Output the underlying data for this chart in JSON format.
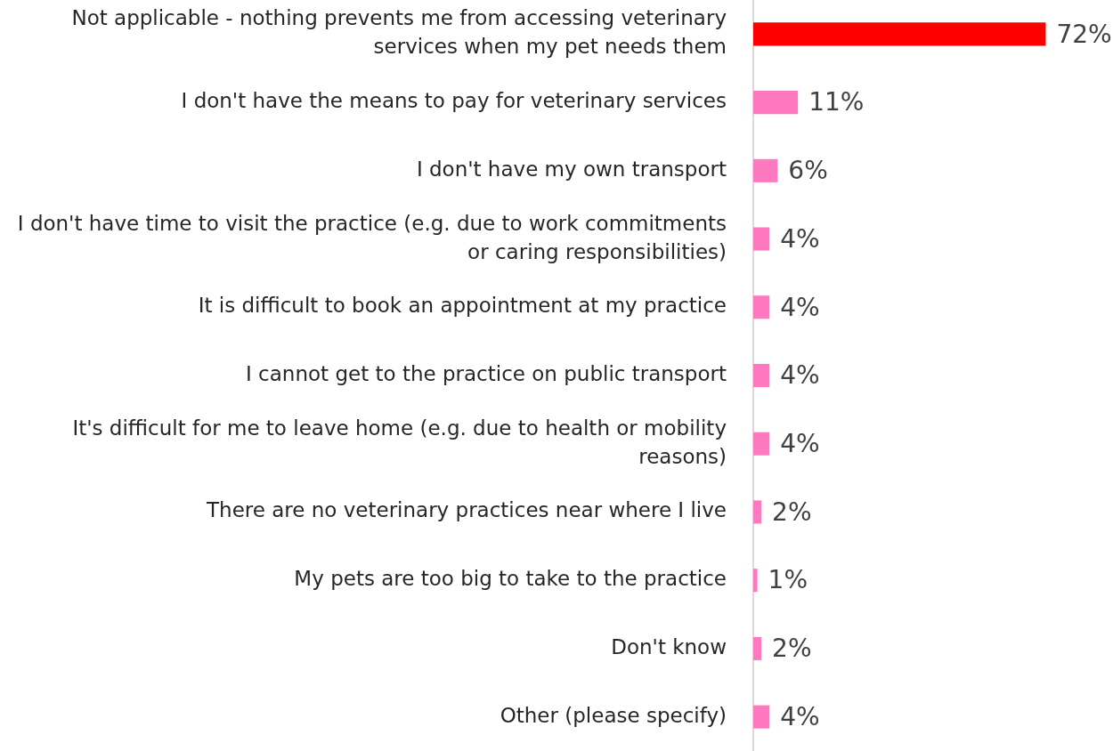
{
  "chart_data": {
    "type": "bar",
    "orientation": "horizontal",
    "categories": [
      "Not applicable - nothing prevents me from accessing veterinary services when my pet needs them",
      "I don't have the means to pay for veterinary services",
      "I don't have my own transport",
      "I don't have time to visit the practice (e.g. due to work commitments or caring responsibilities)",
      "It is difficult to book an appointment at my practice",
      "I cannot get to the practice on public transport",
      "It's difficult for me to leave home (e.g. due to health or mobility reasons)",
      "There are no veterinary practices near where I live",
      "My pets are too big to take to the practice",
      "Don't know",
      "Other (please specify)"
    ],
    "values": [
      72,
      11,
      6,
      4,
      4,
      4,
      4,
      2,
      1,
      2,
      4
    ],
    "colors": [
      "#ff0000",
      "#ff79c1",
      "#ff79c1",
      "#ff79c1",
      "#ff79c1",
      "#ff79c1",
      "#ff79c1",
      "#ff79c1",
      "#ff79c1",
      "#ff79c1",
      "#ff79c1"
    ],
    "value_labels": [
      "72%",
      "11%",
      "6%",
      "4%",
      "4%",
      "4%",
      "4%",
      "2%",
      "1%",
      "2%",
      "4%"
    ],
    "legend": false
  }
}
